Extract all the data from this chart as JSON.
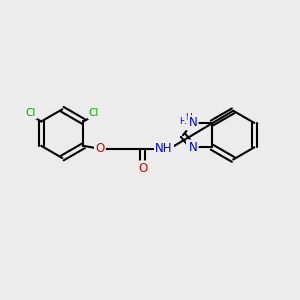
{
  "bg_color": "#ececec",
  "bond_color": "#000000",
  "bond_lw": 1.5,
  "atom_colors": {
    "Cl": "#00aa00",
    "O": "#dd0000",
    "N": "#0000ee",
    "H": "#0000ee",
    "C": "#000000"
  },
  "font_size": 8.5,
  "font_size_small": 7.5
}
